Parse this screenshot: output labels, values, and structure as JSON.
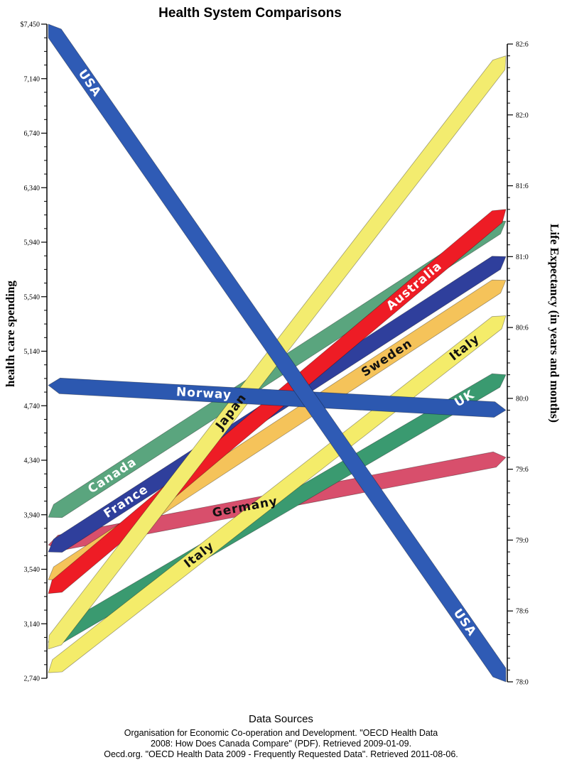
{
  "chart_data": {
    "type": "slope",
    "title": "Health System Comparisons",
    "left_axis": {
      "label": "health care spending",
      "ticks": [
        "$7,450",
        "7,140",
        "6,740",
        "6,340",
        "5,940",
        "5,540",
        "5,140",
        "4,740",
        "4,340",
        "3,940",
        "3,540",
        "3,140",
        "2,740"
      ],
      "range": [
        2740,
        7450
      ]
    },
    "right_axis": {
      "label": "Life Expectancy (in years and months)",
      "ticks": [
        "82:6",
        "82:0",
        "81:6",
        "81:0",
        "80:6",
        "80:0",
        "79:6",
        "79:0",
        "78:6",
        "78:0"
      ],
      "range_months": [
        936,
        990
      ]
    },
    "series": [
      {
        "name": "Canada",
        "labels": [
          "Canada"
        ],
        "spending": 3900,
        "life_months": 975,
        "color": "#5aa57e"
      },
      {
        "name": "Germany",
        "labels": [
          "Germany"
        ],
        "spending": 3700,
        "life_months": 955,
        "color": "#d84f6c"
      },
      {
        "name": "France",
        "labels": [
          "France"
        ],
        "spending": 3650,
        "life_months": 972,
        "color": "#2f3f9c"
      },
      {
        "name": "UK",
        "labels": [
          "UK"
        ],
        "spending": 3000,
        "life_months": 962,
        "color": "#3a9a70"
      },
      {
        "name": "Sweden",
        "labels": [
          "Sweden"
        ],
        "spending": 3450,
        "life_months": 970,
        "color": "#f5c35a"
      },
      {
        "name": "Australia",
        "labels": [
          "Australia"
        ],
        "spending": 3350,
        "life_months": 976,
        "color": "#ee1c25"
      },
      {
        "name": "Italy",
        "labels": [
          "Italy",
          "Italy"
        ],
        "spending": 2780,
        "life_months": 967,
        "color": "#f4ec6a"
      },
      {
        "name": "Japan",
        "labels": [
          "Japan"
        ],
        "spending": 2950,
        "life_months": 989,
        "color": "#f3ec6f"
      },
      {
        "name": "Norway",
        "labels": [
          "Norway"
        ],
        "spending": 4850,
        "life_months": 959,
        "color": "#2c58b0"
      },
      {
        "name": "USA",
        "labels": [
          "USA",
          "USA"
        ],
        "spending": 7450,
        "life_months": 936,
        "color": "#2f5bb5"
      }
    ]
  },
  "sources": {
    "title": "Data Sources",
    "line1": "Organisation for Economic Co-operation and Development. \"OECD Health Data",
    "line2": "2008: How Does Canada Compare\" (PDF). Retrieved 2009-01-09.",
    "line3": "Oecd.org.  \"OECD Health Data 2009 - Frequently Requested Data\".  Retrieved 2011-08-06."
  }
}
